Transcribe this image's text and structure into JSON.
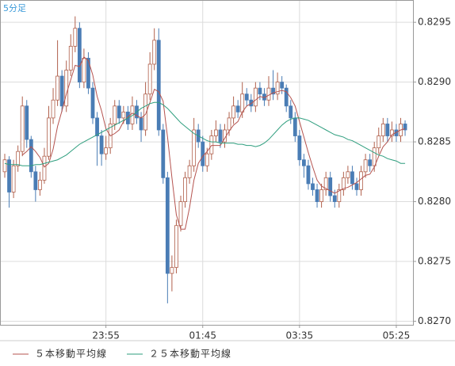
{
  "chart_data": {
    "type": "candlestick",
    "title": "5分足",
    "categories": [
      null,
      null,
      null,
      null,
      null,
      null,
      null,
      null,
      null,
      null,
      null,
      null,
      null,
      null,
      null,
      null,
      null,
      null,
      null,
      null,
      null,
      null,
      null,
      "23:55",
      null,
      null,
      null,
      null,
      null,
      null,
      null,
      null,
      null,
      null,
      null,
      null,
      null,
      null,
      null,
      null,
      null,
      null,
      null,
      null,
      null,
      "01:45",
      null,
      null,
      null,
      null,
      null,
      null,
      null,
      null,
      null,
      null,
      null,
      null,
      null,
      null,
      null,
      null,
      null,
      null,
      null,
      null,
      null,
      "03:35",
      null,
      null,
      null,
      null,
      null,
      null,
      null,
      null,
      null,
      null,
      null,
      null,
      null,
      null,
      null,
      null,
      null,
      null,
      null,
      null,
      null,
      "05:25",
      null,
      null
    ],
    "open": [
      0.82825,
      0.82835,
      0.82808,
      0.8283,
      0.82842,
      0.8288,
      0.82852,
      0.82825,
      0.8281,
      0.82818,
      0.82838,
      0.8287,
      0.82885,
      0.82905,
      0.8288,
      0.8291,
      0.8293,
      0.82945,
      0.829,
      0.8292,
      0.82895,
      0.8287,
      0.82855,
      0.8284,
      0.82845,
      0.82865,
      0.8288,
      0.8287,
      0.82875,
      0.82865,
      0.8288,
      0.8287,
      0.8286,
      0.8289,
      0.82915,
      0.82935,
      0.8286,
      0.8282,
      0.8274,
      0.82745,
      0.8278,
      0.828,
      0.8282,
      0.8283,
      0.8286,
      0.8285,
      0.8283,
      0.8284,
      0.82855,
      0.8286,
      0.8285,
      0.8286,
      0.8287,
      0.8288,
      0.82875,
      0.8289,
      0.82885,
      0.8288,
      0.82895,
      0.8289,
      0.82885,
      0.82895,
      0.8289,
      0.829,
      0.82895,
      0.8288,
      0.8287,
      0.82855,
      0.82835,
      0.8283,
      0.82815,
      0.8281,
      0.828,
      0.8281,
      0.8282,
      0.82805,
      0.828,
      0.8281,
      0.8282,
      0.82825,
      0.82815,
      0.8281,
      0.82825,
      0.82835,
      0.8283,
      0.82845,
      0.82855,
      0.82865,
      0.82855,
      0.8286,
      0.82855,
      0.82865
    ],
    "high": [
      0.8284,
      0.82838,
      0.82835,
      0.82847,
      0.82888,
      0.82885,
      0.82855,
      0.8283,
      0.82825,
      0.82845,
      0.8288,
      0.82895,
      0.82935,
      0.8291,
      0.82918,
      0.8294,
      0.82955,
      0.8295,
      0.82928,
      0.82925,
      0.829,
      0.82875,
      0.8286,
      0.82855,
      0.8287,
      0.82885,
      0.82885,
      0.8288,
      0.8288,
      0.82888,
      0.82885,
      0.82875,
      0.829,
      0.82925,
      0.82945,
      0.82945,
      0.82865,
      0.82825,
      0.82755,
      0.82785,
      0.82805,
      0.82825,
      0.82835,
      0.8287,
      0.82865,
      0.82855,
      0.82845,
      0.8286,
      0.82868,
      0.82865,
      0.82865,
      0.82875,
      0.82888,
      0.82885,
      0.829,
      0.82895,
      0.8289,
      0.829,
      0.829,
      0.82895,
      0.82905,
      0.8291,
      0.82908,
      0.82905,
      0.82898,
      0.82885,
      0.82875,
      0.8286,
      0.8284,
      0.82835,
      0.8282,
      0.82815,
      0.82815,
      0.82825,
      0.82825,
      0.8281,
      0.82815,
      0.82825,
      0.8283,
      0.8283,
      0.8282,
      0.8283,
      0.8284,
      0.8284,
      0.8285,
      0.82862,
      0.8287,
      0.8287,
      0.82867,
      0.82865,
      0.8287,
      0.82868
    ],
    "low": [
      0.8282,
      0.82795,
      0.82803,
      0.82825,
      0.82838,
      0.82845,
      0.8282,
      0.828,
      0.82805,
      0.82815,
      0.82835,
      0.82865,
      0.8288,
      0.82875,
      0.82875,
      0.82905,
      0.82925,
      0.82895,
      0.82895,
      0.8289,
      0.82865,
      0.8283,
      0.8283,
      0.82835,
      0.8284,
      0.8286,
      0.82865,
      0.82865,
      0.8286,
      0.8286,
      0.82865,
      0.8285,
      0.82855,
      0.82885,
      0.8291,
      0.82855,
      0.82815,
      0.82715,
      0.82725,
      0.8274,
      0.82775,
      0.82795,
      0.82815,
      0.82825,
      0.82845,
      0.82825,
      0.82825,
      0.82835,
      0.8285,
      0.82845,
      0.82845,
      0.82855,
      0.82865,
      0.8287,
      0.8287,
      0.8288,
      0.82875,
      0.82875,
      0.82885,
      0.8288,
      0.8288,
      0.82885,
      0.82885,
      0.8289,
      0.82875,
      0.82865,
      0.8285,
      0.8283,
      0.8282,
      0.8281,
      0.82805,
      0.82795,
      0.82795,
      0.82805,
      0.828,
      0.82795,
      0.82795,
      0.82805,
      0.82815,
      0.8281,
      0.82805,
      0.82805,
      0.8282,
      0.82825,
      0.82825,
      0.8284,
      0.8285,
      0.8285,
      0.8285,
      0.8285,
      0.8285,
      0.82855
    ],
    "close": [
      0.82835,
      0.82808,
      0.8283,
      0.82842,
      0.8288,
      0.82852,
      0.82825,
      0.8281,
      0.82818,
      0.82838,
      0.8287,
      0.82885,
      0.82905,
      0.8288,
      0.8291,
      0.8293,
      0.82945,
      0.829,
      0.8292,
      0.82895,
      0.8287,
      0.82855,
      0.8284,
      0.82845,
      0.82865,
      0.8288,
      0.8287,
      0.82875,
      0.82865,
      0.8288,
      0.8287,
      0.8286,
      0.8289,
      0.82915,
      0.82935,
      0.8286,
      0.8282,
      0.8274,
      0.82745,
      0.8278,
      0.828,
      0.8282,
      0.8283,
      0.8286,
      0.8285,
      0.8283,
      0.8284,
      0.82855,
      0.8286,
      0.8285,
      0.8286,
      0.8287,
      0.8288,
      0.82875,
      0.8289,
      0.82885,
      0.8288,
      0.82895,
      0.8289,
      0.82885,
      0.82895,
      0.8289,
      0.829,
      0.82895,
      0.8288,
      0.8287,
      0.82855,
      0.82835,
      0.8283,
      0.82815,
      0.8281,
      0.828,
      0.8281,
      0.8282,
      0.82805,
      0.828,
      0.8281,
      0.8282,
      0.82825,
      0.82815,
      0.8281,
      0.82825,
      0.82835,
      0.8283,
      0.82845,
      0.82855,
      0.82865,
      0.82855,
      0.8286,
      0.82855,
      0.82865,
      0.8286
    ],
    "up_color": "#b0604c",
    "down_color": "#4a7db5",
    "series": [
      {
        "name": "５本移動平均線",
        "color": "#b5534f",
        "values": [
          null,
          null,
          null,
          null,
          0.82839,
          0.82842,
          0.82846,
          0.82842,
          0.82837,
          0.82829,
          0.82832,
          0.82844,
          0.82863,
          0.82876,
          0.8289,
          0.82902,
          0.82914,
          0.82913,
          0.82921,
          0.82918,
          0.82906,
          0.82888,
          0.82876,
          0.82861,
          0.82855,
          0.82857,
          0.8286,
          0.82867,
          0.82871,
          0.82874,
          0.82872,
          0.8287,
          0.82873,
          0.82883,
          0.82894,
          0.82892,
          0.82884,
          0.82854,
          0.8282,
          0.82789,
          0.82777,
          0.82777,
          0.82795,
          0.82818,
          0.82832,
          0.82838,
          0.82842,
          0.82847,
          0.82847,
          0.82847,
          0.82853,
          0.82859,
          0.82864,
          0.82867,
          0.82875,
          0.8288,
          0.82882,
          0.82885,
          0.82888,
          0.82887,
          0.82889,
          0.82891,
          0.82892,
          0.82893,
          0.82892,
          0.82887,
          0.8288,
          0.82867,
          0.82854,
          0.82841,
          0.82829,
          0.82818,
          0.82813,
          0.82811,
          0.82809,
          0.82807,
          0.82809,
          0.82811,
          0.82812,
          0.82814,
          0.82816,
          0.82819,
          0.82822,
          0.82823,
          0.82829,
          0.82838,
          0.82846,
          0.8285,
          0.82856,
          0.82858,
          0.8286,
          0.82861
        ]
      },
      {
        "name": "２５本移動平均線",
        "color": "#2e9e7e",
        "values": [
          0.82832,
          0.82831,
          0.82831,
          0.82831,
          0.8283,
          0.8283,
          0.8283,
          0.82831,
          0.82831,
          0.82832,
          0.82833,
          0.82834,
          0.82835,
          0.82837,
          0.82839,
          0.82842,
          0.82845,
          0.82848,
          0.8285,
          0.82852,
          0.82854,
          0.82856,
          0.82858,
          0.8286,
          0.82862,
          0.82864,
          0.82866,
          0.82868,
          0.8287,
          0.82872,
          0.82875,
          0.82878,
          0.8288,
          0.82882,
          0.82883,
          0.82883,
          0.82881,
          0.82878,
          0.82874,
          0.8287,
          0.82866,
          0.82863,
          0.8286,
          0.82857,
          0.82855,
          0.82853,
          0.82851,
          0.8285,
          0.8285,
          0.82849,
          0.82849,
          0.82849,
          0.82849,
          0.82848,
          0.82848,
          0.82847,
          0.82847,
          0.82846,
          0.82847,
          0.82849,
          0.82852,
          0.82856,
          0.8286,
          0.82864,
          0.82867,
          0.82869,
          0.8287,
          0.8287,
          0.82869,
          0.82868,
          0.82866,
          0.82864,
          0.82862,
          0.8286,
          0.82858,
          0.82856,
          0.82855,
          0.82854,
          0.82852,
          0.82851,
          0.82849,
          0.82847,
          0.82845,
          0.82843,
          0.82841,
          0.82839,
          0.82838,
          0.82836,
          0.82835,
          0.82834,
          0.82832,
          0.82832
        ]
      }
    ],
    "ylim": [
      0.82697,
      0.82968
    ],
    "yticks": [
      {
        "value": 0.827,
        "label": "0.8270"
      },
      0.8275,
      {
        "value": 0.828,
        "label": "0.8280"
      },
      0.8285,
      {
        "value": 0.829,
        "label": "0.8290"
      },
      0.8295
    ],
    "grid": true
  }
}
